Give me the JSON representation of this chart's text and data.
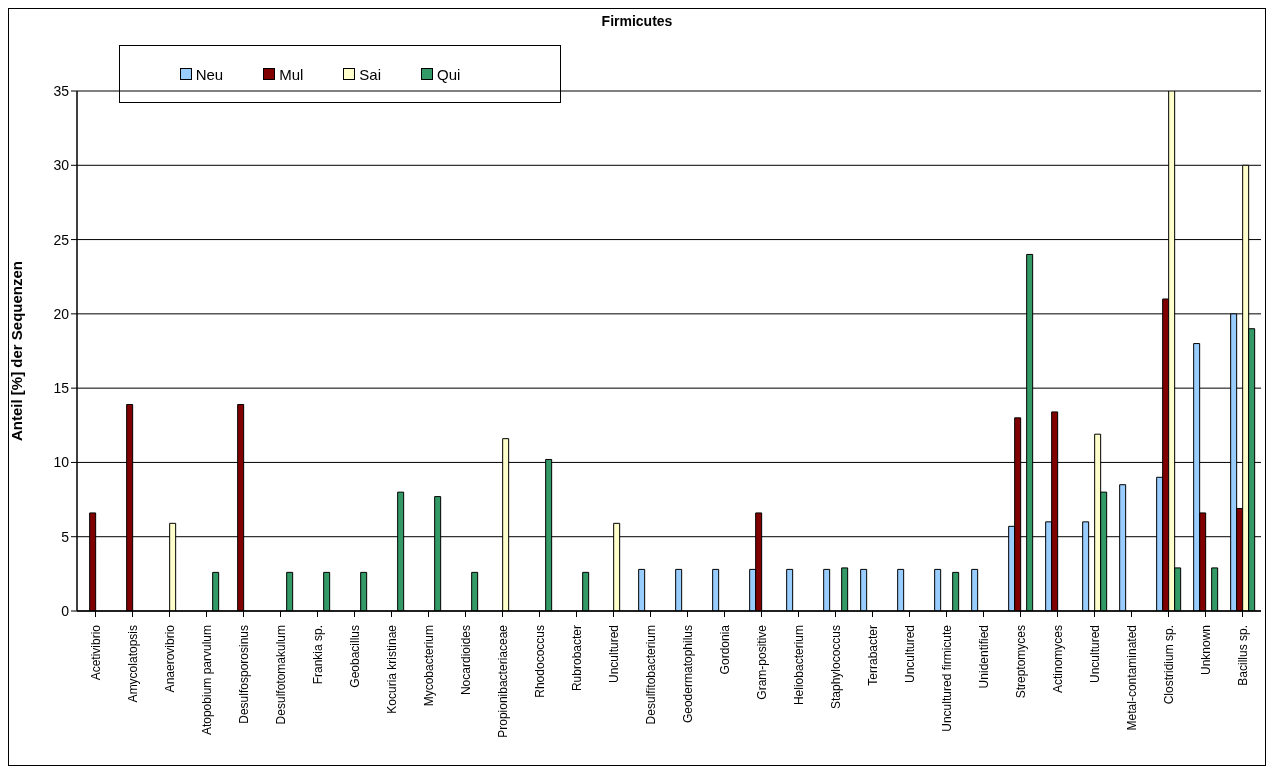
{
  "chart_data": {
    "type": "bar",
    "title": "Firmicutes",
    "ylabel": "Anteil [%] der Sequenzen",
    "categories": [
      "Acetivibrio",
      "Amycolatopsis",
      "Anaerovibrio",
      "Atopobium parvulum",
      "Desulfosporosinus",
      "Desulfotomakulum",
      "Frankia sp.",
      "Geobacillus",
      "Kocuria kristinae",
      "Mycobacterium",
      "Nocardioides",
      "Propionibacteriaceae",
      "Rhodococcus",
      "Rubrobacter",
      "Uncultured",
      "Desulfitobacterium",
      "Geodermatophilus",
      "Gordonia",
      "Gram-positive",
      "Heliobacterium",
      "Staphylococcus",
      "Terrabacter",
      "Uncultured",
      "Uncultured firmicute",
      "Unidentified",
      "Streptomyces",
      "Actinomyces",
      "Uncultured",
      "Metal-contaminated",
      "Clostridium sp.",
      "Unknown",
      "Bacillus sp."
    ],
    "series": [
      {
        "name": "Neu",
        "color": "#99ccff",
        "values": [
          null,
          null,
          null,
          null,
          null,
          null,
          null,
          null,
          null,
          null,
          null,
          null,
          null,
          null,
          null,
          2.8,
          2.8,
          2.8,
          2.8,
          2.8,
          2.8,
          2.8,
          2.8,
          2.8,
          2.8,
          5.7,
          6.0,
          6.0,
          8.5,
          9.0,
          18.0,
          20.0
        ]
      },
      {
        "name": "Mul",
        "color": "#800000",
        "values": [
          6.6,
          13.9,
          null,
          null,
          13.9,
          null,
          null,
          null,
          null,
          null,
          null,
          null,
          null,
          null,
          null,
          null,
          null,
          null,
          6.6,
          null,
          null,
          null,
          null,
          null,
          null,
          13.0,
          13.4,
          null,
          null,
          21.0,
          6.6,
          6.9
        ]
      },
      {
        "name": "Sai",
        "color": "#ffffcc",
        "values": [
          null,
          null,
          5.9,
          null,
          null,
          null,
          null,
          null,
          null,
          null,
          null,
          11.6,
          null,
          null,
          5.9,
          null,
          null,
          null,
          null,
          null,
          null,
          null,
          null,
          null,
          null,
          null,
          null,
          11.9,
          null,
          35,
          null,
          30.0
        ]
      },
      {
        "name": "Qui",
        "color": "#339966",
        "values": [
          null,
          null,
          null,
          2.6,
          null,
          2.6,
          2.6,
          2.6,
          8.0,
          7.7,
          2.6,
          null,
          10.2,
          2.6,
          null,
          null,
          null,
          null,
          null,
          null,
          2.9,
          null,
          null,
          2.6,
          null,
          24.0,
          null,
          8.0,
          null,
          2.9,
          2.9,
          19.0
        ]
      }
    ],
    "ylim": [
      0,
      35
    ],
    "yticks": [
      0,
      5,
      10,
      15,
      20,
      25,
      30,
      35
    ],
    "grid": "y",
    "legend": "top left"
  }
}
